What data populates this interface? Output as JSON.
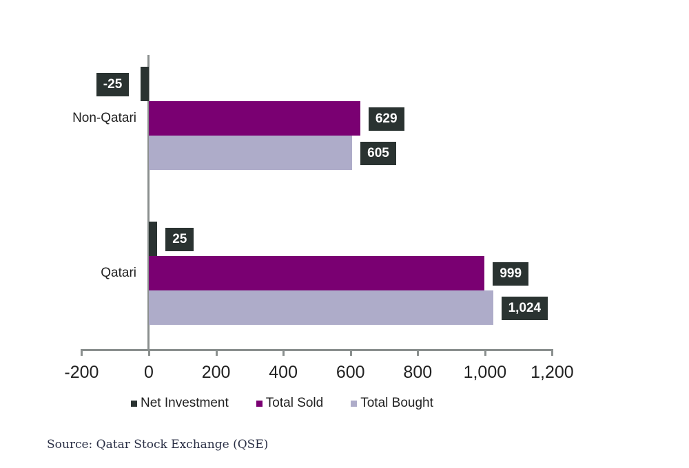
{
  "chart_data": {
    "type": "bar",
    "orientation": "horizontal",
    "title": "",
    "xlabel": "",
    "ylabel": "",
    "categories": [
      "Non-Qatari",
      "Qatari"
    ],
    "series": [
      {
        "name": "Net Investment",
        "color": "#2a3331",
        "values": [
          -25,
          25
        ],
        "labels": [
          "-25",
          "25"
        ]
      },
      {
        "name": "Total Sold",
        "color": "#7a0072",
        "values": [
          629,
          999
        ],
        "labels": [
          "629",
          "999"
        ]
      },
      {
        "name": "Total Bought",
        "color": "#aeacc9",
        "values": [
          605,
          1024
        ],
        "labels": [
          "605",
          "1,024"
        ]
      }
    ],
    "xlim": [
      -200,
      1200
    ],
    "xticks": [
      "-200",
      "0",
      "200",
      "400",
      "600",
      "800",
      "1,000",
      "1,200"
    ],
    "grid": false,
    "legend_position": "bottom"
  },
  "legend": {
    "items": [
      {
        "label": "Net Investment",
        "color": "#2a3331"
      },
      {
        "label": "Total Sold",
        "color": "#7a0072"
      },
      {
        "label": "Total Bought",
        "color": "#aeacc9"
      }
    ]
  },
  "source": "Source: Qatar Stock Exchange (QSE)"
}
